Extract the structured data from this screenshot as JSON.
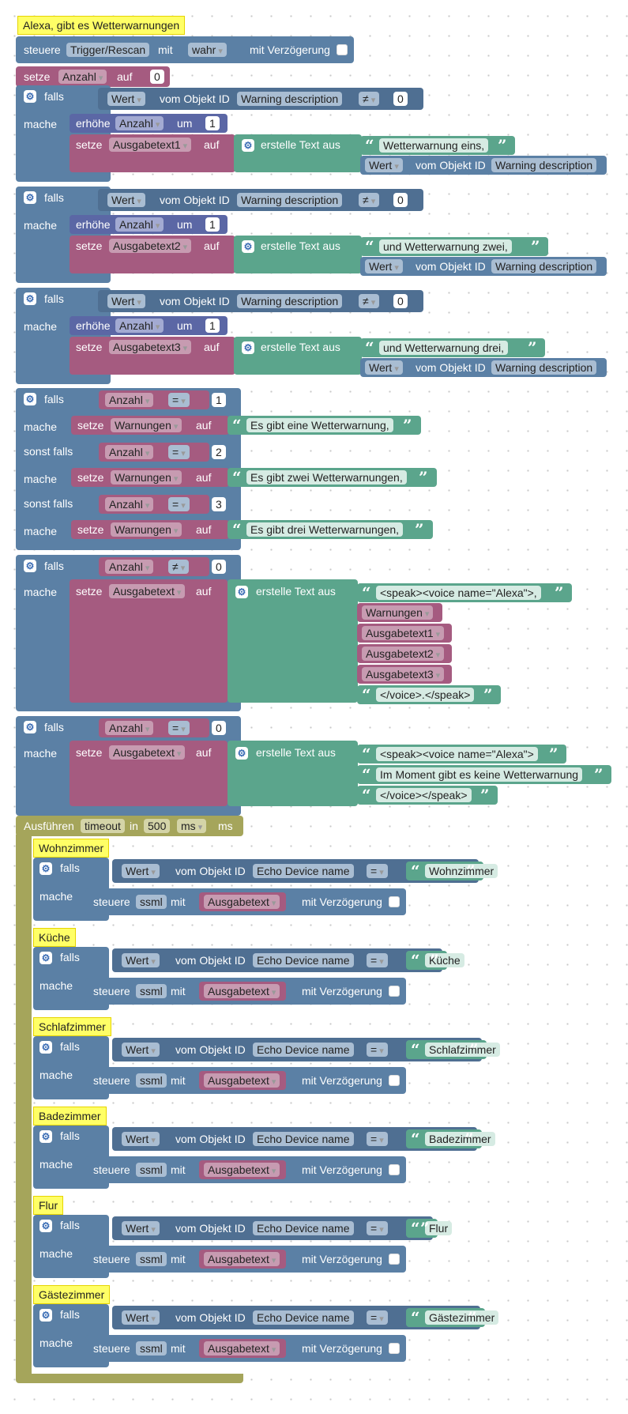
{
  "blocks": {
    "header_comment": "Alexa, gibt es Wetterwarnungen",
    "steuere": "steuere",
    "trigger": "Trigger/Rescan",
    "mit": "mit",
    "wahr": "wahr",
    "mit_verzoegerung": "mit Verzögerung",
    "setze": "setze",
    "anzahl": "Anzahl",
    "auf": "auf",
    "zero": "0",
    "falls": "falls",
    "mache": "mache",
    "sonst_falls": "sonst falls",
    "wert": "Wert",
    "vom_objekt_id": "vom Objekt ID",
    "warning_description": "Warning description",
    "neq": "≠",
    "eq": "=",
    "erhoehe": "erhöhe",
    "um": "um",
    "one": "1",
    "two": "2",
    "three": "3",
    "erstelle_text_aus": "erstelle Text aus",
    "ausgabetext1": "Ausgabetext1",
    "ausgabetext2": "Ausgabetext2",
    "ausgabetext3": "Ausgabetext3",
    "ausgabetext": "Ausgabetext",
    "warnungen": "Warnungen",
    "txt_eins": "Wetterwarnung eins,",
    "txt_zwei": "und Wetterwarnung zwei,",
    "txt_drei": "und Wetterwarnung drei,",
    "txt_eine": "Es gibt eine Wetterwarnung,",
    "txt_zwei_w": "Es gibt zwei Wetterwarnungen,",
    "txt_drei_w": "Es gibt drei Wetterwarnungen,",
    "speak_open_comma": "<speak><voice name=\"Alexa\">,",
    "voice_close_dot": "</voice>.</speak>",
    "speak_open": "<speak><voice name=\"Alexa\">",
    "keine": "Im Moment gibt es keine Wetterwarnung",
    "voice_close": "</voice></speak>",
    "ausfuehren": "Ausführen",
    "timeout": "timeout",
    "in": "in",
    "ms_value": "500",
    "ms_unit": "ms",
    "ms": "ms",
    "echo_device_name": "Echo Device name",
    "ssml": "ssml"
  },
  "rooms": [
    {
      "name": "Wohnzimmer",
      "value": "Wohnzimmer"
    },
    {
      "name": "Küche",
      "value": "Küche"
    },
    {
      "name": "Schlafzimmer",
      "value": "Schlafzimmer"
    },
    {
      "name": "Badezimmer",
      "value": "Badezimmer"
    },
    {
      "name": "Flur",
      "value": "Flur"
    },
    {
      "name": "Gästezimmer",
      "value": "Gästezimmer"
    }
  ]
}
